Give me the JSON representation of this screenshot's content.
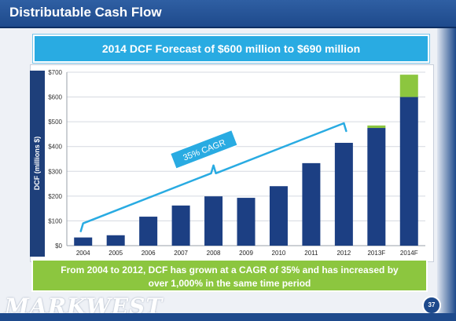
{
  "header": {
    "title": "Distributable Cash Flow"
  },
  "forecast_banner": "2014 DCF Forecast of $600 million to $690 million",
  "footer_banner": {
    "line1": "From 2004 to 2012, DCF has grown at a CAGR of 35% and has increased by",
    "line2": "over 1,000% in the same time period"
  },
  "logo_text": "MARKWEST",
  "page_number": "37",
  "colors": {
    "navy": "#1e3f7a",
    "bar": "#1c3f83",
    "forecast_green": "#8cc63f",
    "accent_blue": "#29abe2"
  },
  "chart_data": {
    "type": "bar",
    "ylabel": "DCF (millions $)",
    "ylim": [
      0,
      700
    ],
    "yticks": [
      0,
      100,
      200,
      300,
      400,
      500,
      600,
      700
    ],
    "ytick_labels": [
      "$0",
      "$100",
      "$200",
      "$300",
      "$400",
      "$500",
      "$600",
      "$700"
    ],
    "grid": true,
    "categories": [
      "2004",
      "2005",
      "2006",
      "2007",
      "2008",
      "2009",
      "2010",
      "2011",
      "2012",
      "2013F",
      "2014F"
    ],
    "series": [
      {
        "values": [
          33,
          42,
          117,
          162,
          199,
          193,
          240,
          333,
          415,
          475,
          600
        ]
      },
      {
        "values": [
          0,
          0,
          0,
          0,
          0,
          0,
          0,
          0,
          0,
          10,
          90
        ]
      }
    ],
    "annotation": {
      "text": "35% CAGR",
      "from_category": "2004",
      "to_category": "2012"
    }
  }
}
